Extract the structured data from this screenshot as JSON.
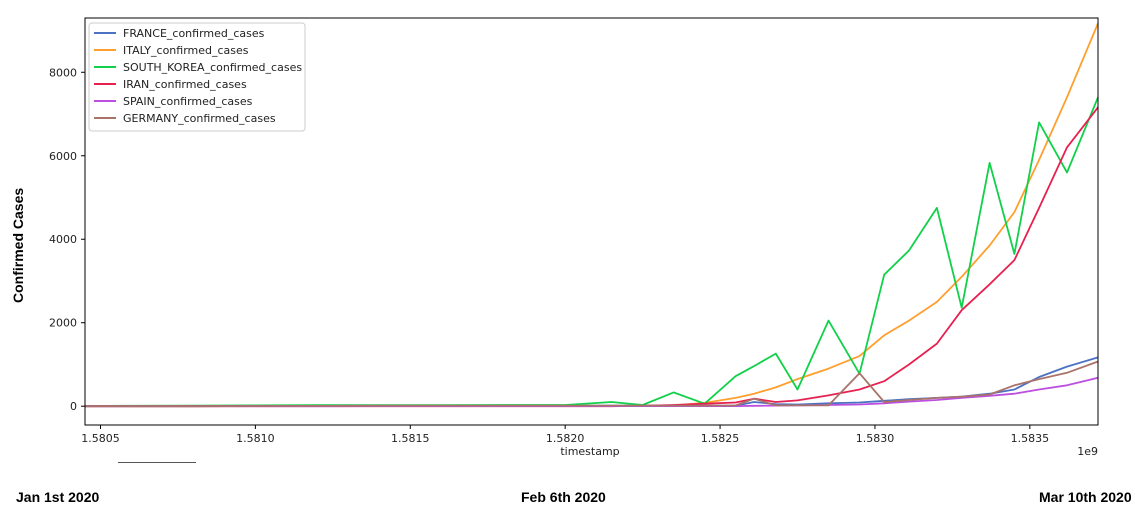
{
  "chart_data": {
    "type": "line",
    "xlabel": "timestamp",
    "ylabel": "Confirmed Cases",
    "x_offset_label": "1e9",
    "x_ticks": [
      1.5805,
      1.581,
      1.5815,
      1.582,
      1.5825,
      1.583,
      1.5835
    ],
    "x_tick_labels": [
      "1.5805",
      "1.5810",
      "1.5815",
      "1.5820",
      "1.5825",
      "1.5830",
      "1.5835"
    ],
    "y_ticks": [
      0,
      2000,
      4000,
      6000,
      8000
    ],
    "y_tick_labels": [
      "0",
      "2000",
      "4000",
      "6000",
      "8000"
    ],
    "xlim": [
      1.58045,
      1.58372
    ],
    "ylim": [
      -450,
      9300
    ],
    "legend_position": "top-left",
    "grid": false,
    "x": [
      1.58045,
      1.5806,
      1.5808,
      1.581,
      1.5812,
      1.5814,
      1.5816,
      1.5818,
      1.582,
      1.58215,
      1.58225,
      1.58235,
      1.58245,
      1.58255,
      1.58261,
      1.58268,
      1.58275,
      1.58285,
      1.58295,
      1.58303,
      1.58311,
      1.5832,
      1.58328,
      1.58337,
      1.58345,
      1.58353,
      1.58362,
      1.58372
    ],
    "series": [
      {
        "name": "FRANCE_confirmed_cases",
        "color": "#4c72c4",
        "values": [
          0,
          0,
          0,
          5,
          6,
          6,
          6,
          6,
          10,
          12,
          12,
          12,
          12,
          12,
          100,
          50,
          40,
          70,
          90,
          130,
          170,
          200,
          230,
          300,
          400,
          700,
          950,
          1170
        ]
      },
      {
        "name": "ITALY_confirmed_cases",
        "color": "#ff9f2e",
        "values": [
          0,
          0,
          0,
          2,
          2,
          2,
          2,
          2,
          3,
          3,
          3,
          20,
          80,
          200,
          300,
          450,
          650,
          900,
          1200,
          1700,
          2050,
          2500,
          3100,
          3850,
          4650,
          5900,
          7400,
          9170
        ]
      },
      {
        "name": "SOUTH_KOREA_confirmed_cases",
        "color": "#11d14a",
        "values": [
          4,
          10,
          15,
          20,
          25,
          26,
          27,
          28,
          30,
          100,
          30,
          330,
          60,
          720,
          960,
          1260,
          400,
          2050,
          780,
          3150,
          3730,
          4750,
          2360,
          5830,
          3650,
          6800,
          5600,
          7400
        ]
      },
      {
        "name": "IRAN_confirmed_cases",
        "color": "#e82050",
        "values": [
          0,
          0,
          0,
          0,
          0,
          0,
          0,
          0,
          0,
          0,
          10,
          30,
          60,
          90,
          180,
          100,
          140,
          260,
          400,
          600,
          1000,
          1500,
          2300,
          2920,
          3500,
          4750,
          6200,
          7160
        ]
      },
      {
        "name": "SPAIN_confirmed_cases",
        "color": "#bd4fe0",
        "values": [
          0,
          0,
          0,
          1,
          1,
          2,
          2,
          2,
          2,
          2,
          2,
          2,
          2,
          2,
          10,
          15,
          20,
          30,
          40,
          70,
          110,
          150,
          200,
          250,
          300,
          400,
          500,
          680
        ]
      },
      {
        "name": "GERMANY_confirmed_cases",
        "color": "#a9736a",
        "values": [
          0,
          0,
          0,
          4,
          8,
          12,
          14,
          15,
          15,
          15,
          15,
          15,
          15,
          16,
          180,
          20,
          20,
          20,
          790,
          100,
          150,
          200,
          230,
          280,
          500,
          650,
          800,
          1070
        ]
      }
    ]
  },
  "outer": {
    "ylabel": "Confirmed Cases",
    "dates": [
      "Jan 1st 2020",
      "Feb 6th 2020",
      "Mar 10th 2020"
    ]
  }
}
